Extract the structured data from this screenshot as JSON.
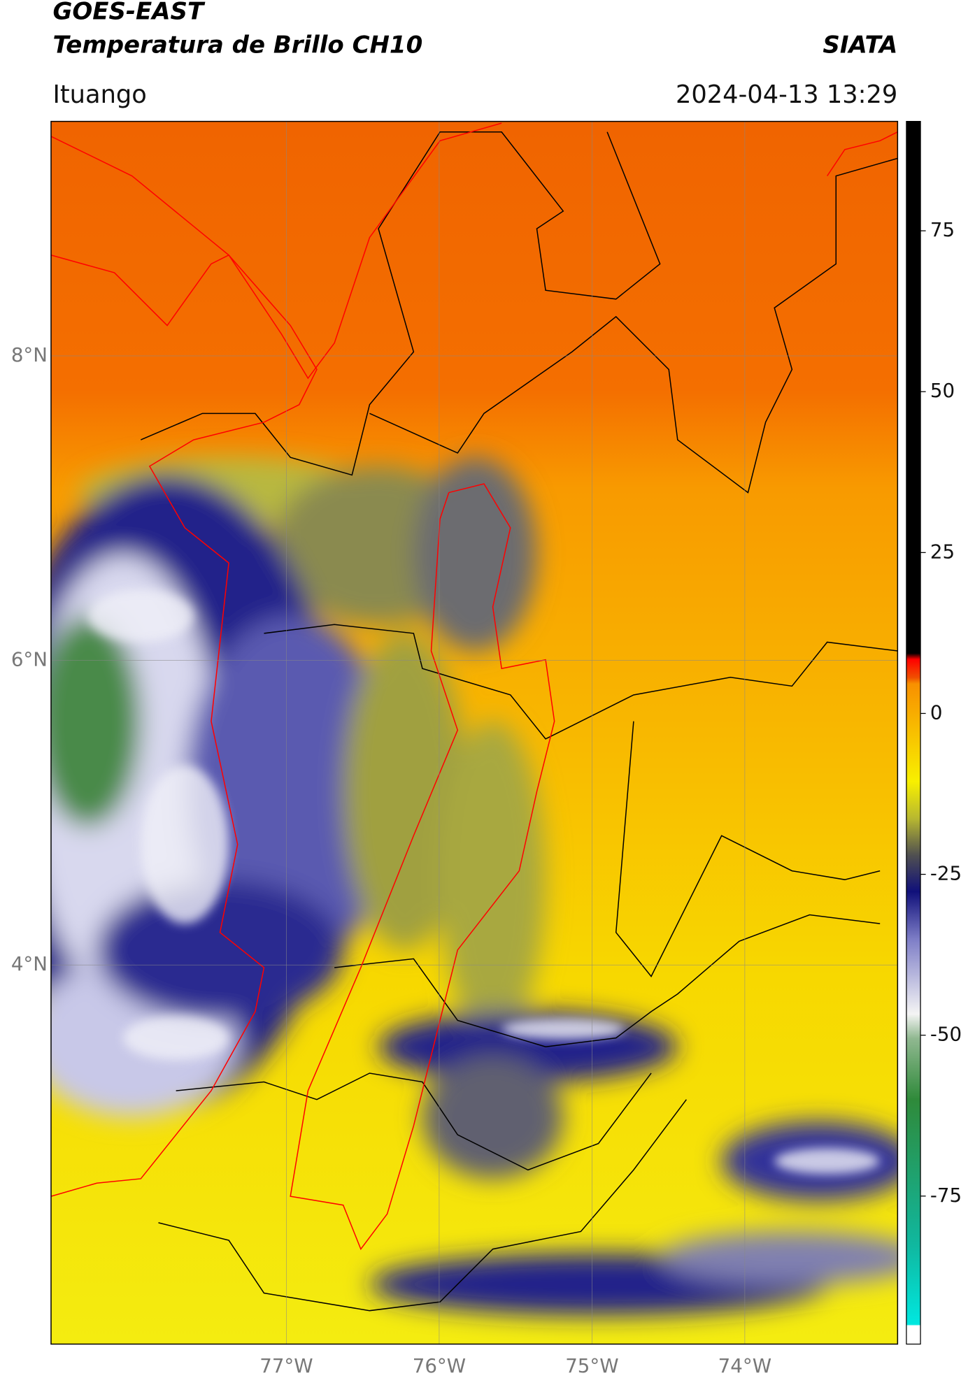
{
  "header": {
    "title": "GOES-EAST",
    "subtitle": "Temperatura de Brillo CH10",
    "source": "SIATA",
    "location": "Ituango",
    "timestamp": "2024-04-13 13:29"
  },
  "map": {
    "latlim": [
      1.51,
      9.54
    ],
    "lonlim": [
      -78.54,
      -73.0
    ],
    "lat_ticks": [
      {
        "value": 8,
        "label": "8°N"
      },
      {
        "value": 6,
        "label": "6°N"
      },
      {
        "value": 4,
        "label": "4°N"
      }
    ],
    "lon_ticks": [
      {
        "value": -77,
        "label": "77°W"
      },
      {
        "value": -76,
        "label": "76°W"
      },
      {
        "value": -75,
        "label": "75°W"
      },
      {
        "value": -74,
        "label": "74°W"
      }
    ]
  },
  "colorbar": {
    "lim": [
      -98,
      92
    ],
    "ticks": [
      75,
      50,
      25,
      0,
      -25,
      -50,
      -75
    ]
  }
}
